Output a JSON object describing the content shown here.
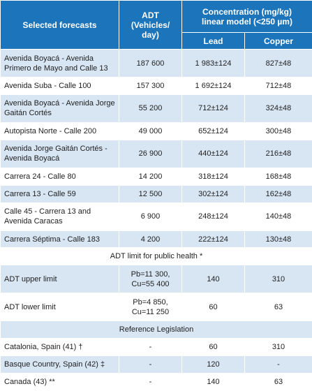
{
  "header": {
    "col1": "Selected forecasts",
    "col2": "ADT\n(Vehicles/\nday)",
    "col3": "Concentration (mg/kg)\nlinear model (<250 µm)",
    "lead": "Lead",
    "copper": "Copper"
  },
  "table": {
    "rows": [
      [
        "Avenida Boyacá - Avenida Primero de Mayo and Calle 13",
        "187 600",
        "1 983±124",
        "827±48"
      ],
      [
        "Avenida Suba - Calle 100",
        "157 300",
        "1 692±124",
        "712±48"
      ],
      [
        "Avenida Boyacá - Avenida Jorge Gaitán Cortés",
        "55 200",
        "712±124",
        "324±48"
      ],
      [
        "Autopista Norte - Calle 200",
        "49 000",
        "652±124",
        "300±48"
      ],
      [
        "Avenida Jorge Gaitán Cortés - Avenida Boyacá",
        "26 900",
        "440±124",
        "216±48"
      ],
      [
        "Carrera 24 - Calle 80",
        "14 200",
        "318±124",
        "168±48"
      ],
      [
        "Carrera 13 - Calle 59",
        "12 500",
        "302±124",
        "162±48"
      ],
      [
        "Calle 45 - Carrera 13 and Avenida Caracas",
        "6 900",
        "248±124",
        "140±48"
      ],
      [
        "Carrera Séptima - Calle 183",
        "4 200",
        "222±124",
        "130±48"
      ]
    ]
  },
  "section1": "ADT limit for public health *",
  "limits": {
    "rows": [
      [
        "ADT upper limit",
        "Pb=11 300,\nCu=55 400",
        "140",
        "310"
      ],
      [
        "ADT lower limit",
        "Pb=4 850,\nCu=11 250",
        "60",
        "63"
      ]
    ]
  },
  "section2": "Reference Legislation",
  "legislation": {
    "rows": [
      [
        "Catalonia, Spain (41) †",
        "-",
        "60",
        "310"
      ],
      [
        "Basque Country, Spain (42) ‡",
        "-",
        "120",
        "-"
      ],
      [
        "Canada (43) **",
        "-",
        "140",
        "63"
      ]
    ]
  }
}
